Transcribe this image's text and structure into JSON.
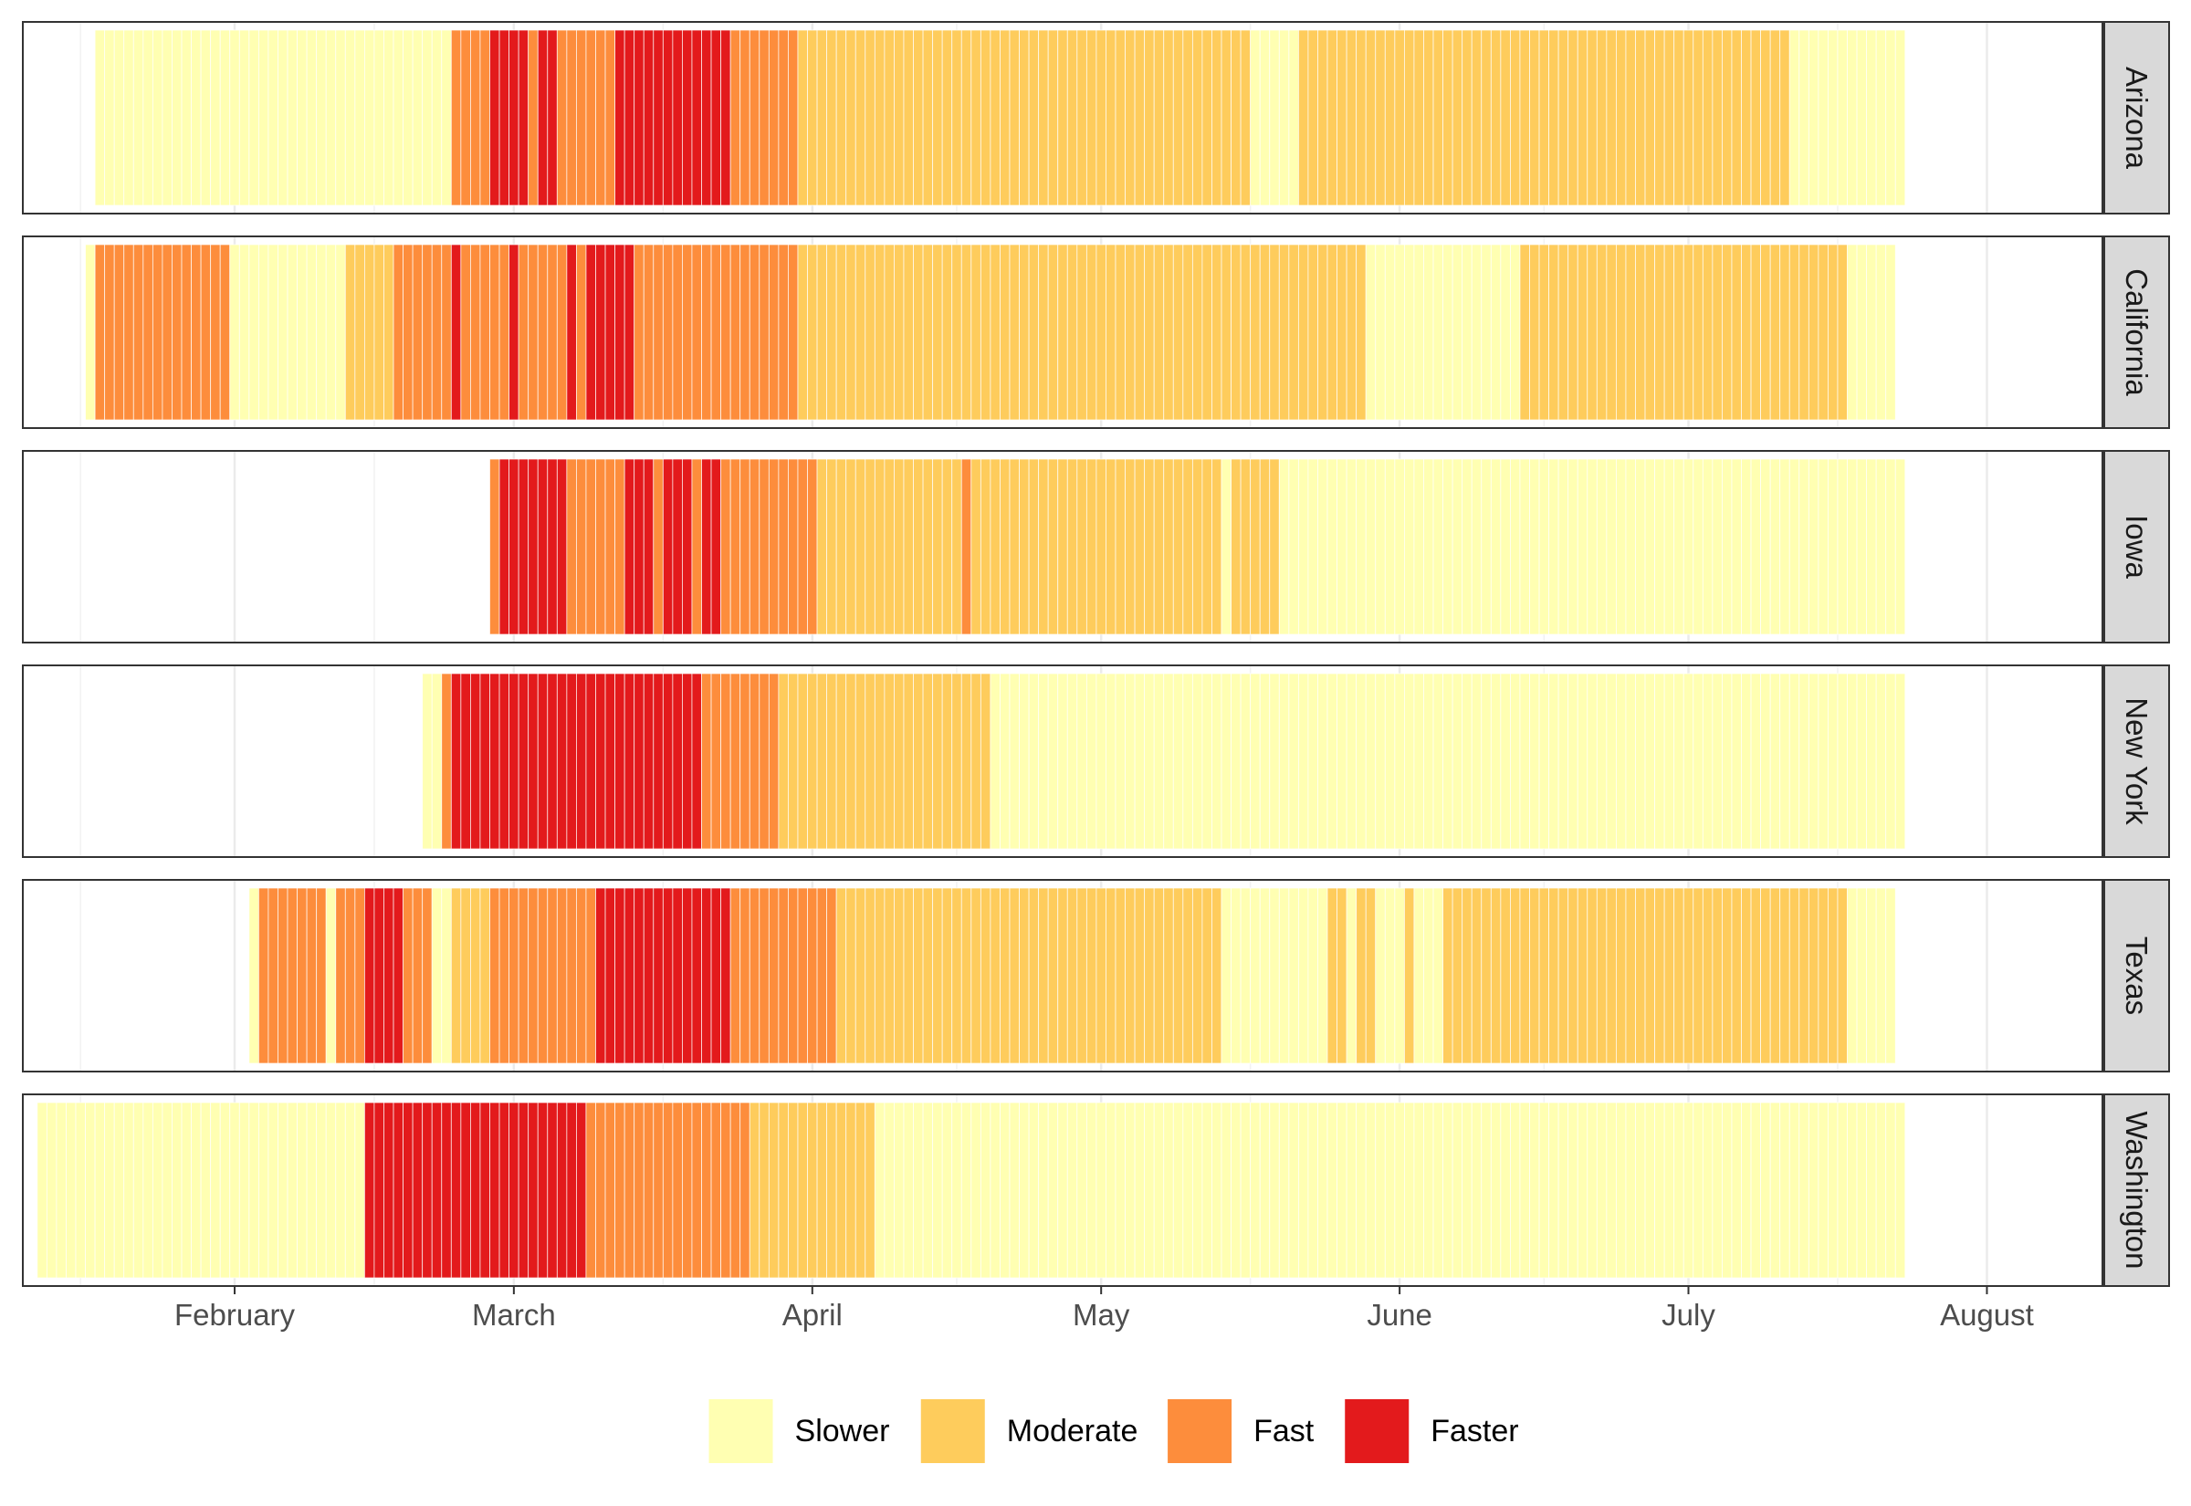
{
  "chart_data": {
    "type": "heatmap",
    "title": "",
    "xlabel": "",
    "ylabel": "",
    "x_axis": {
      "type": "date",
      "range": [
        "2020-01-10",
        "2020-08-13"
      ],
      "ticks": [
        {
          "date": "2020-02-01",
          "label": "February"
        },
        {
          "date": "2020-03-01",
          "label": "March"
        },
        {
          "date": "2020-04-01",
          "label": "April"
        },
        {
          "date": "2020-05-01",
          "label": "May"
        },
        {
          "date": "2020-06-01",
          "label": "June"
        },
        {
          "date": "2020-07-01",
          "label": "July"
        },
        {
          "date": "2020-08-01",
          "label": "August"
        }
      ]
    },
    "categories": [
      "Slower",
      "Moderate",
      "Fast",
      "Faster"
    ],
    "colors": {
      "Slower": "#FFFFB2",
      "Moderate": "#FECC5C",
      "Fast": "#FD8D3C",
      "Faster": "#E31A1C"
    },
    "grid": true,
    "legend_position": "bottom",
    "panels": [
      {
        "name": "Arizona",
        "segments": [
          {
            "start": "2020-01-18",
            "end": "2020-02-23",
            "category": "Slower"
          },
          {
            "start": "2020-02-24",
            "end": "2020-02-27",
            "category": "Fast"
          },
          {
            "start": "2020-02-28",
            "end": "2020-03-02",
            "category": "Faster"
          },
          {
            "start": "2020-03-03",
            "end": "2020-03-03",
            "category": "Fast"
          },
          {
            "start": "2020-03-04",
            "end": "2020-03-05",
            "category": "Faster"
          },
          {
            "start": "2020-03-06",
            "end": "2020-03-11",
            "category": "Fast"
          },
          {
            "start": "2020-03-12",
            "end": "2020-03-23",
            "category": "Faster"
          },
          {
            "start": "2020-03-24",
            "end": "2020-03-30",
            "category": "Fast"
          },
          {
            "start": "2020-03-31",
            "end": "2020-05-16",
            "category": "Moderate"
          },
          {
            "start": "2020-05-17",
            "end": "2020-05-21",
            "category": "Slower"
          },
          {
            "start": "2020-05-22",
            "end": "2020-07-11",
            "category": "Moderate"
          },
          {
            "start": "2020-07-12",
            "end": "2020-07-23",
            "category": "Slower"
          }
        ]
      },
      {
        "name": "California",
        "segments": [
          {
            "start": "2020-01-17",
            "end": "2020-01-17",
            "category": "Slower"
          },
          {
            "start": "2020-01-18",
            "end": "2020-01-31",
            "category": "Fast"
          },
          {
            "start": "2020-02-01",
            "end": "2020-02-12",
            "category": "Slower"
          },
          {
            "start": "2020-02-13",
            "end": "2020-02-17",
            "category": "Moderate"
          },
          {
            "start": "2020-02-18",
            "end": "2020-02-23",
            "category": "Fast"
          },
          {
            "start": "2020-02-24",
            "end": "2020-02-24",
            "category": "Faster"
          },
          {
            "start": "2020-02-25",
            "end": "2020-02-29",
            "category": "Fast"
          },
          {
            "start": "2020-03-01",
            "end": "2020-03-01",
            "category": "Faster"
          },
          {
            "start": "2020-03-02",
            "end": "2020-03-06",
            "category": "Fast"
          },
          {
            "start": "2020-03-07",
            "end": "2020-03-07",
            "category": "Faster"
          },
          {
            "start": "2020-03-08",
            "end": "2020-03-08",
            "category": "Fast"
          },
          {
            "start": "2020-03-09",
            "end": "2020-03-13",
            "category": "Faster"
          },
          {
            "start": "2020-03-14",
            "end": "2020-03-30",
            "category": "Fast"
          },
          {
            "start": "2020-03-31",
            "end": "2020-05-28",
            "category": "Moderate"
          },
          {
            "start": "2020-05-29",
            "end": "2020-06-13",
            "category": "Slower"
          },
          {
            "start": "2020-06-14",
            "end": "2020-07-17",
            "category": "Moderate"
          },
          {
            "start": "2020-07-18",
            "end": "2020-07-22",
            "category": "Slower"
          }
        ]
      },
      {
        "name": "Iowa",
        "segments": [
          {
            "start": "2020-02-28",
            "end": "2020-02-28",
            "category": "Fast"
          },
          {
            "start": "2020-02-29",
            "end": "2020-03-06",
            "category": "Faster"
          },
          {
            "start": "2020-03-07",
            "end": "2020-03-12",
            "category": "Fast"
          },
          {
            "start": "2020-03-13",
            "end": "2020-03-15",
            "category": "Faster"
          },
          {
            "start": "2020-03-16",
            "end": "2020-03-16",
            "category": "Fast"
          },
          {
            "start": "2020-03-17",
            "end": "2020-03-19",
            "category": "Faster"
          },
          {
            "start": "2020-03-20",
            "end": "2020-03-20",
            "category": "Fast"
          },
          {
            "start": "2020-03-21",
            "end": "2020-03-22",
            "category": "Faster"
          },
          {
            "start": "2020-03-23",
            "end": "2020-04-01",
            "category": "Fast"
          },
          {
            "start": "2020-04-02",
            "end": "2020-04-16",
            "category": "Moderate"
          },
          {
            "start": "2020-04-17",
            "end": "2020-04-17",
            "category": "Fast"
          },
          {
            "start": "2020-04-18",
            "end": "2020-05-13",
            "category": "Moderate"
          },
          {
            "start": "2020-05-14",
            "end": "2020-05-14",
            "category": "Slower"
          },
          {
            "start": "2020-05-15",
            "end": "2020-05-19",
            "category": "Moderate"
          },
          {
            "start": "2020-05-20",
            "end": "2020-07-23",
            "category": "Slower"
          }
        ]
      },
      {
        "name": "New York",
        "segments": [
          {
            "start": "2020-02-21",
            "end": "2020-02-22",
            "category": "Slower"
          },
          {
            "start": "2020-02-23",
            "end": "2020-02-23",
            "category": "Fast"
          },
          {
            "start": "2020-02-24",
            "end": "2020-03-20",
            "category": "Faster"
          },
          {
            "start": "2020-03-21",
            "end": "2020-03-28",
            "category": "Fast"
          },
          {
            "start": "2020-03-29",
            "end": "2020-04-19",
            "category": "Moderate"
          },
          {
            "start": "2020-04-20",
            "end": "2020-07-23",
            "category": "Slower"
          }
        ]
      },
      {
        "name": "Texas",
        "segments": [
          {
            "start": "2020-02-03",
            "end": "2020-02-03",
            "category": "Slower"
          },
          {
            "start": "2020-02-04",
            "end": "2020-02-10",
            "category": "Fast"
          },
          {
            "start": "2020-02-11",
            "end": "2020-02-11",
            "category": "Slower"
          },
          {
            "start": "2020-02-12",
            "end": "2020-02-14",
            "category": "Fast"
          },
          {
            "start": "2020-02-15",
            "end": "2020-02-18",
            "category": "Faster"
          },
          {
            "start": "2020-02-19",
            "end": "2020-02-21",
            "category": "Fast"
          },
          {
            "start": "2020-02-22",
            "end": "2020-02-23",
            "category": "Slower"
          },
          {
            "start": "2020-02-24",
            "end": "2020-02-27",
            "category": "Moderate"
          },
          {
            "start": "2020-02-28",
            "end": "2020-03-09",
            "category": "Fast"
          },
          {
            "start": "2020-03-10",
            "end": "2020-03-23",
            "category": "Faster"
          },
          {
            "start": "2020-03-24",
            "end": "2020-04-03",
            "category": "Fast"
          },
          {
            "start": "2020-04-04",
            "end": "2020-05-13",
            "category": "Moderate"
          },
          {
            "start": "2020-05-14",
            "end": "2020-05-24",
            "category": "Slower"
          },
          {
            "start": "2020-05-25",
            "end": "2020-05-26",
            "category": "Moderate"
          },
          {
            "start": "2020-05-27",
            "end": "2020-05-27",
            "category": "Slower"
          },
          {
            "start": "2020-05-28",
            "end": "2020-05-29",
            "category": "Moderate"
          },
          {
            "start": "2020-05-30",
            "end": "2020-06-01",
            "category": "Slower"
          },
          {
            "start": "2020-06-02",
            "end": "2020-06-02",
            "category": "Moderate"
          },
          {
            "start": "2020-06-03",
            "end": "2020-06-05",
            "category": "Slower"
          },
          {
            "start": "2020-06-06",
            "end": "2020-07-17",
            "category": "Moderate"
          },
          {
            "start": "2020-07-18",
            "end": "2020-07-22",
            "category": "Slower"
          }
        ]
      },
      {
        "name": "Washington",
        "segments": [
          {
            "start": "2020-01-12",
            "end": "2020-02-14",
            "category": "Slower"
          },
          {
            "start": "2020-02-15",
            "end": "2020-03-08",
            "category": "Faster"
          },
          {
            "start": "2020-03-09",
            "end": "2020-03-25",
            "category": "Fast"
          },
          {
            "start": "2020-03-26",
            "end": "2020-04-07",
            "category": "Moderate"
          },
          {
            "start": "2020-04-08",
            "end": "2020-07-23",
            "category": "Slower"
          }
        ]
      }
    ]
  }
}
